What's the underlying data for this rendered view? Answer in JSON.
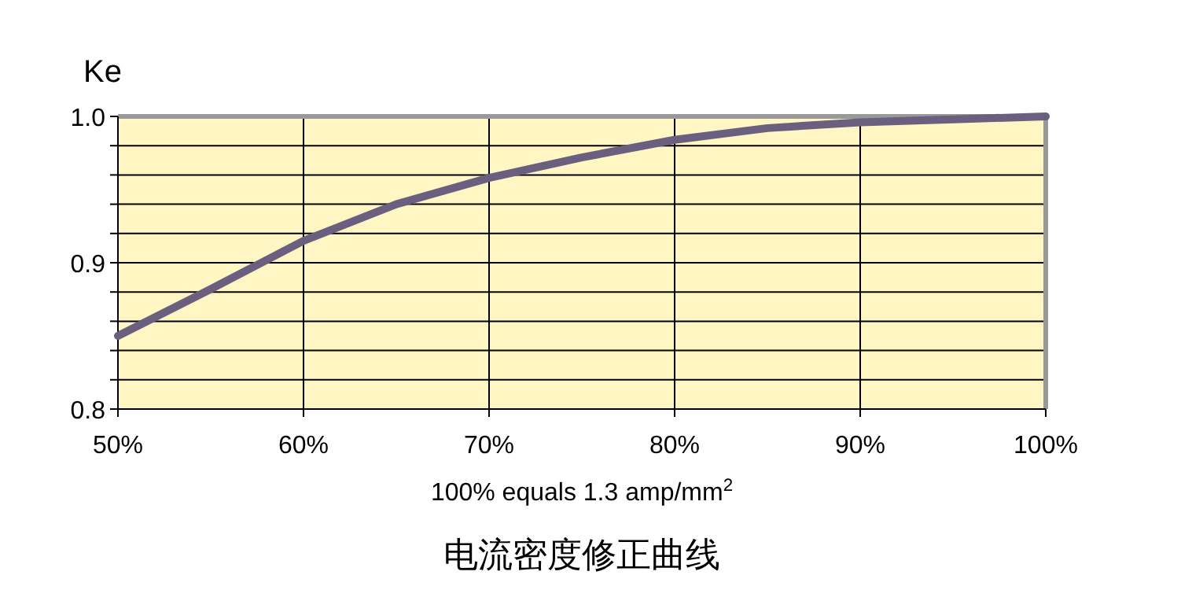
{
  "chart_data": {
    "type": "line",
    "title": "电流密度修正曲线",
    "xlabel": "100% equals 1.3 amp/mm$^{2}$",
    "ylabel": "Ke",
    "x": [
      50,
      55,
      60,
      65,
      70,
      75,
      80,
      85,
      90,
      95,
      100
    ],
    "series": [
      {
        "color": "#6b5f80",
        "values": [
          0.85,
          0.882,
          0.915,
          0.94,
          0.958,
          0.972,
          0.984,
          0.992,
          0.996,
          0.998,
          1.0
        ]
      }
    ],
    "xlim": [
      50,
      100
    ],
    "ylim": [
      0.8,
      1.0
    ],
    "xticks": [
      {
        "value": 50,
        "label": "50%"
      },
      {
        "value": 60,
        "label": "60%"
      },
      {
        "value": 70,
        "label": "70%"
      },
      {
        "value": 80,
        "label": "80%"
      },
      {
        "value": 90,
        "label": "90%"
      },
      {
        "value": 100,
        "label": "100%"
      }
    ],
    "yticks": [
      {
        "value": 0.8,
        "label": "0.8"
      },
      {
        "value": 0.82,
        "label": null
      },
      {
        "value": 0.84,
        "label": null
      },
      {
        "value": 0.86,
        "label": null
      },
      {
        "value": 0.88,
        "label": null
      },
      {
        "value": 0.9,
        "label": "0.9"
      },
      {
        "value": 0.92,
        "label": null
      },
      {
        "value": 0.94,
        "label": null
      },
      {
        "value": 0.96,
        "label": null
      },
      {
        "value": 0.98,
        "label": null
      },
      {
        "value": 1.0,
        "label": "1.0"
      }
    ],
    "grid": true
  }
}
